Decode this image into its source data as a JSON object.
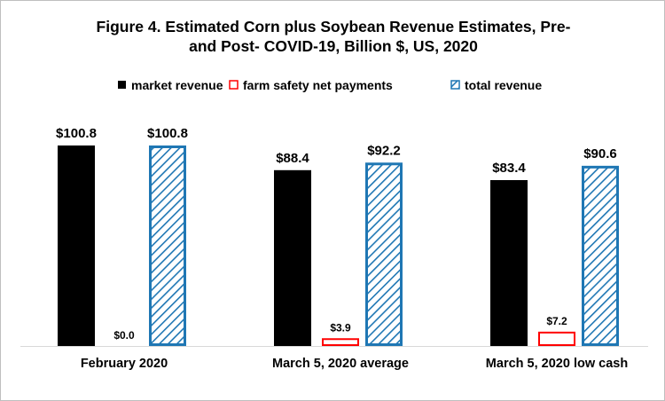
{
  "chart_data": {
    "type": "bar",
    "title_lines": [
      "Figure 4. Estimated Corn plus Soybean Revenue Estimates, Pre-",
      "and Post- COVID-19,  Billion $, US, 2020"
    ],
    "categories": [
      "February 2020",
      "March 5, 2020 average",
      "March 5, 2020 low cash"
    ],
    "series": [
      {
        "name": "market revenue",
        "values": [
          100.8,
          88.4,
          83.4
        ],
        "labels": [
          "$100.8",
          "$88.4",
          "$83.4"
        ],
        "color": "#000000",
        "style": "solid"
      },
      {
        "name": "farm safety net payments",
        "values": [
          0.0,
          3.9,
          7.2
        ],
        "labels": [
          "$0.0",
          "$3.9",
          "$7.2"
        ],
        "color": "#ff0000",
        "style": "outline"
      },
      {
        "name": "total revenue",
        "values": [
          100.8,
          92.2,
          90.6
        ],
        "labels": [
          "$100.8",
          "$92.2",
          "$90.6"
        ],
        "color": "#1f77b4",
        "style": "hatched"
      }
    ],
    "ylim": [
      0,
      120
    ],
    "xlabel": "",
    "ylabel": "",
    "grid": false,
    "legend_position": "top"
  }
}
